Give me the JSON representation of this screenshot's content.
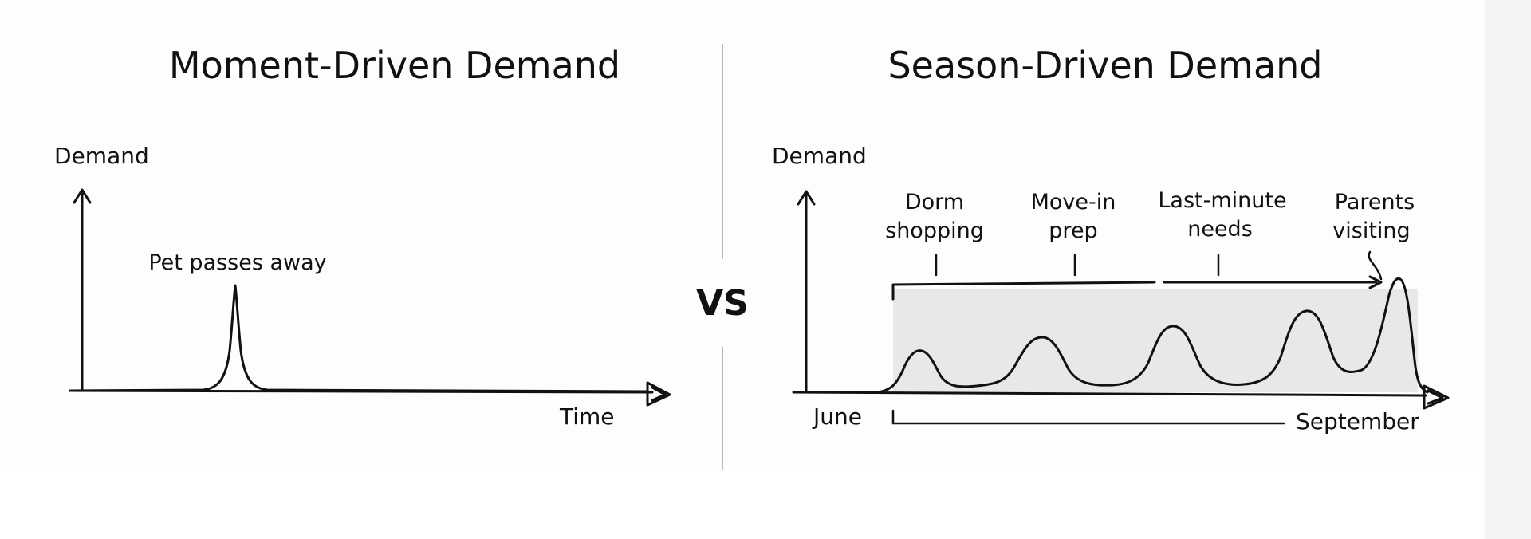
{
  "left_panel": {
    "title": "Moment-Driven Demand",
    "y_label": "Demand",
    "x_label": "Time",
    "spike_label": "Pet passes away"
  },
  "separator": {
    "label": "VS"
  },
  "right_panel": {
    "title": "Season-Driven Demand",
    "y_label": "Demand",
    "start_label": "June",
    "end_label": "September",
    "phases": [
      {
        "line1": "Dorm",
        "line2": "shopping"
      },
      {
        "line1": "Move-in",
        "line2": "prep"
      },
      {
        "line1": "Last-minute",
        "line2": "needs"
      },
      {
        "line1": "Parents",
        "line2": "visiting"
      }
    ]
  },
  "colors": {
    "ink": "#111111",
    "shade": "#e8e8e8",
    "divider": "#b8b8b8",
    "gutter": "#f3f4f6"
  }
}
